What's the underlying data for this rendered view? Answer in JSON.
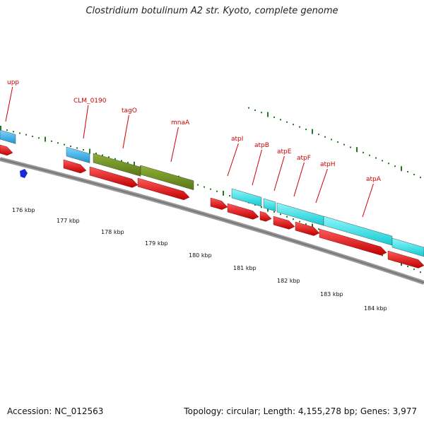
{
  "title": "Clostridium botulinum A2 str. Kyoto, complete genome",
  "footer": {
    "accession": "Accession: NC_012563",
    "summary": "Topology: circular; Length: 4,155,278 bp; Genes: 3,977"
  },
  "colors": {
    "cds_forward": "#e41a1c",
    "blue_feature": "#3cb4e6",
    "cyan_feature": "#22e5ec",
    "olive_feature": "#6f8e1e",
    "marker": "#1a2ad6",
    "dots": "#1f7a1f",
    "backbone": "#777777",
    "label": "#cc0000"
  },
  "kbp_labels": [
    "176 kbp",
    "177 kbp",
    "178 kbp",
    "179 kbp",
    "180 kbp",
    "181 kbp",
    "182 kbp",
    "183 kbp",
    "184 kbp"
  ],
  "gene_labels": [
    "upp",
    "CLM_0190",
    "tagO",
    "mnaA",
    "atpI",
    "atpB",
    "atpE",
    "atpF",
    "atpH",
    "atpA"
  ]
}
